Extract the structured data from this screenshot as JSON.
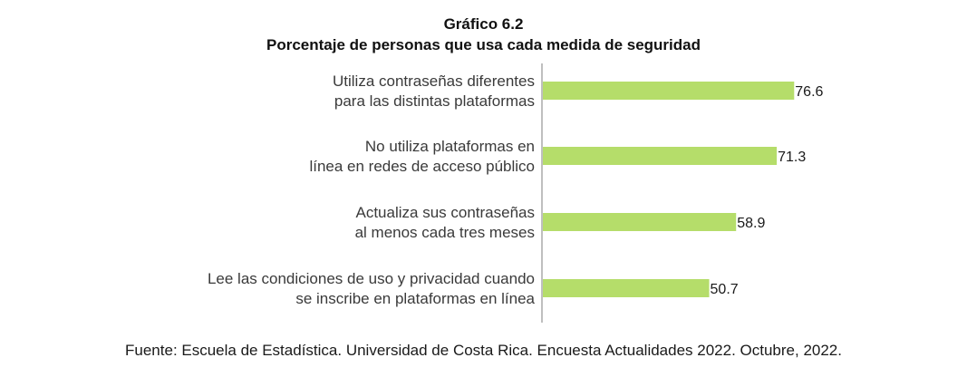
{
  "chart_data": {
    "type": "bar",
    "orientation": "horizontal",
    "title": "Gráfico 6.2",
    "subtitle": "Porcentaje de personas que usa cada medida de seguridad",
    "categories": [
      [
        "Utiliza contraseñas diferentes",
        "para las distintas plataformas"
      ],
      [
        "No utiliza plataformas en",
        "línea en redes de acceso público"
      ],
      [
        "Actualiza sus contraseñas",
        "al menos cada tres meses"
      ],
      [
        "Lee las condiciones de uso y privacidad cuando",
        "se inscribe en plataformas en línea"
      ]
    ],
    "values": [
      76.6,
      71.3,
      58.9,
      50.7
    ],
    "value_labels": [
      "76.6",
      "71.3",
      "58.9",
      "50.7"
    ],
    "xlim": [
      0,
      100
    ],
    "grid": false,
    "legend": "none",
    "bar_color": "#b5dd6a",
    "axis_color": "#7f7f7f"
  },
  "source": "Fuente: Escuela de Estadística. Universidad de Costa Rica. Encuesta Actualidades 2022. Octubre, 2022."
}
